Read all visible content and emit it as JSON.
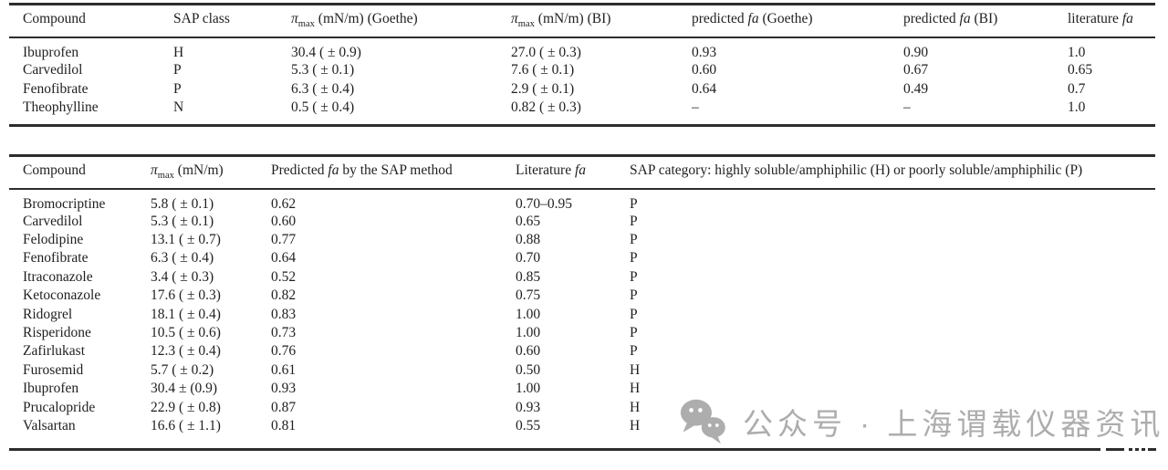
{
  "page": {
    "background": "#ffffff",
    "text_color": "#1f1f1f",
    "rule_color": "#2d2d2d"
  },
  "table1": {
    "headers": [
      "Compound",
      "SAP class",
      "π_max (mN/m) (Goethe)",
      "π_max (mN/m) (BI)",
      "predicted fa (Goethe)",
      "predicted fa (BI)",
      "literature fa"
    ],
    "rows": [
      [
        "Ibuprofen",
        "H",
        "30.4 ( ± 0.9)",
        "27.0 ( ± 0.3)",
        "0.93",
        "0.90",
        "1.0"
      ],
      [
        "Carvedilol",
        "P",
        "5.3 ( ± 0.1)",
        "7.6 ( ± 0.1)",
        "0.60",
        "0.67",
        "0.65"
      ],
      [
        "Fenofibrate",
        "P",
        "6.3 ( ± 0.4)",
        "2.9 ( ± 0.1)",
        "0.64",
        "0.49",
        "0.7"
      ],
      [
        "Theophylline",
        "N",
        "0.5 ( ± 0.4)",
        "0.82 ( ± 0.3)",
        "–",
        "–",
        "1.0"
      ]
    ]
  },
  "table2": {
    "headers": [
      "Compound",
      "π_max (mN/m)",
      "Predicted fa by the SAP method",
      "Literature fa",
      "SAP category: highly soluble/amphiphilic (H) or poorly soluble/amphiphilic (P)"
    ],
    "rows": [
      [
        "Bromocriptine",
        "5.8 ( ± 0.1)",
        "0.62",
        "0.70–0.95",
        "P"
      ],
      [
        "Carvedilol",
        "5.3 ( ± 0.1)",
        "0.60",
        "0.65",
        "P"
      ],
      [
        "Felodipine",
        "13.1 ( ± 0.7)",
        "0.77",
        "0.88",
        "P"
      ],
      [
        "Fenofibrate",
        "6.3 ( ± 0.4)",
        "0.64",
        "0.70",
        "P"
      ],
      [
        "Itraconazole",
        "3.4 ( ± 0.3)",
        "0.52",
        "0.85",
        "P"
      ],
      [
        "Ketoconazole",
        "17.6 ( ± 0.3)",
        "0.82",
        "0.75",
        "P"
      ],
      [
        "Ridogrel",
        "18.1 ( ± 0.4)",
        "0.83",
        "1.00",
        "P"
      ],
      [
        "Risperidone",
        "10.5 ( ± 0.6)",
        "0.73",
        "1.00",
        "P"
      ],
      [
        "Zafirlukast",
        "12.3 ( ± 0.4)",
        "0.76",
        "0.60",
        "P"
      ],
      [
        "Furosemid",
        "5.7 ( ± 0.2)",
        "0.61",
        "0.50",
        "H"
      ],
      [
        "Ibuprofen",
        "30.4 ± (0.9)",
        "0.93",
        "1.00",
        "H"
      ],
      [
        "Prucalopride",
        "22.9 ( ± 0.8)",
        "0.87",
        "0.93",
        "H"
      ],
      [
        "Valsartan",
        "16.6 ( ± 1.1)",
        "0.81",
        "0.55",
        "H"
      ]
    ]
  },
  "watermark": {
    "icon": "wechat-icon",
    "text": "公众号 · 上海谓载仪器资讯",
    "color": "#adadad"
  }
}
